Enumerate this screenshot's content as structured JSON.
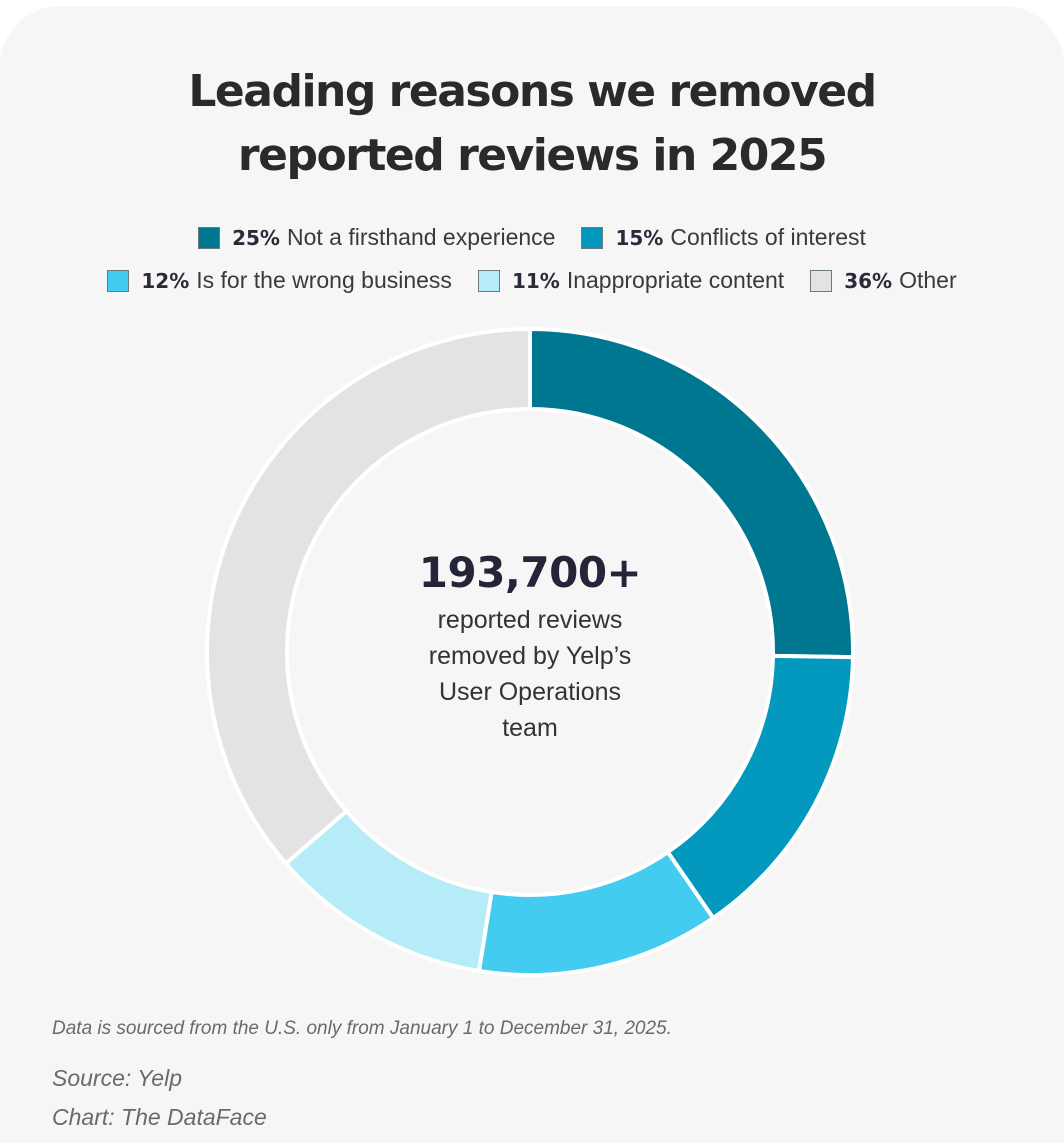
{
  "title": {
    "line1": "Leading reasons we removed",
    "line2": "reported reviews in 2025"
  },
  "chart_data": {
    "type": "pie",
    "title": "Leading reasons we removed reported reviews in 2025",
    "donut": true,
    "slices": [
      {
        "label": "Not a firsthand experience",
        "value": 25,
        "pct_label": "25%",
        "color": "#007791"
      },
      {
        "label": "Conflicts of interest",
        "value": 15,
        "pct_label": "15%",
        "color": "#0399bf"
      },
      {
        "label": "Is for the wrong business",
        "value": 12,
        "pct_label": "12%",
        "color": "#44ccf0"
      },
      {
        "label": "Inappropriate content",
        "value": 11,
        "pct_label": "11%",
        "color": "#b6ecf7"
      },
      {
        "label": "Other",
        "value": 36,
        "pct_label": "36%",
        "color": "#e3e3e3"
      }
    ],
    "legend_placement": "top",
    "center_value": "193,700+",
    "center_text": [
      "reported reviews",
      "removed by Yelp’s",
      "User Operations",
      "team"
    ]
  },
  "footer": {
    "note": "Data is sourced from the U.S. only from January 1 to December 31, 2025.",
    "source": "Source: Yelp",
    "chart_credit": "Chart: The DataFace"
  }
}
